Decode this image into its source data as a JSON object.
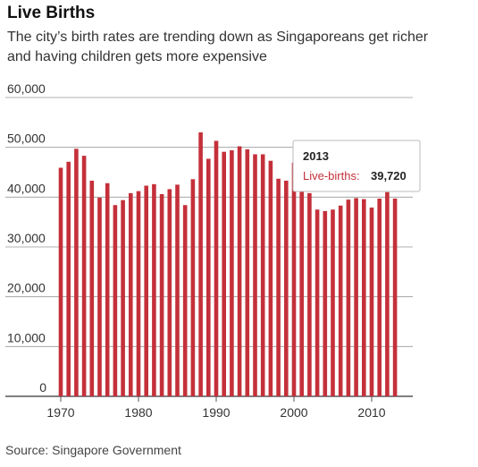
{
  "header": {
    "title": "Live Births",
    "subtitle": "The city’s birth rates are trending down as Singaporeans get richer and having children gets more expensive"
  },
  "footer": {
    "source": "Source: Singapore Government"
  },
  "tooltip": {
    "year": "2013",
    "label": "Live-births:",
    "value": "39,720"
  },
  "colors": {
    "bar": "#c4303a",
    "grid": "#999999",
    "axis": "#555555"
  },
  "chart_data": {
    "type": "bar",
    "title": "Live Births",
    "subtitle": "The city’s birth rates are trending down as Singaporeans get richer and having children gets more expensive",
    "xlabel": "",
    "ylabel": "",
    "ylim": [
      0,
      60000
    ],
    "yticks": [
      0,
      10000,
      20000,
      30000,
      40000,
      50000,
      60000
    ],
    "ytick_labels": [
      "0",
      "10,000",
      "20,000",
      "30,000",
      "40,000",
      "50,000",
      "60,000"
    ],
    "xticks": [
      1970,
      1980,
      1990,
      2000,
      2010
    ],
    "categories": [
      1970,
      1971,
      1972,
      1973,
      1974,
      1975,
      1976,
      1977,
      1978,
      1979,
      1980,
      1981,
      1982,
      1983,
      1984,
      1985,
      1986,
      1987,
      1988,
      1989,
      1990,
      1991,
      1992,
      1993,
      1994,
      1995,
      1996,
      1997,
      1998,
      1999,
      2000,
      2001,
      2002,
      2003,
      2004,
      2005,
      2006,
      2007,
      2008,
      2009,
      2010,
      2011,
      2012,
      2013
    ],
    "values": [
      45900,
      47100,
      49700,
      48300,
      43300,
      39900,
      42800,
      38400,
      39400,
      40800,
      41200,
      42300,
      42600,
      40600,
      41600,
      42500,
      38400,
      43600,
      53000,
      47700,
      51300,
      49100,
      49400,
      50200,
      49600,
      48600,
      48600,
      47300,
      43700,
      43300,
      46900,
      41500,
      40800,
      37500,
      37200,
      37500,
      38300,
      39500,
      39800,
      39600,
      37900,
      39700,
      41000,
      39720
    ],
    "tooltip_index": 43,
    "grid": true
  }
}
